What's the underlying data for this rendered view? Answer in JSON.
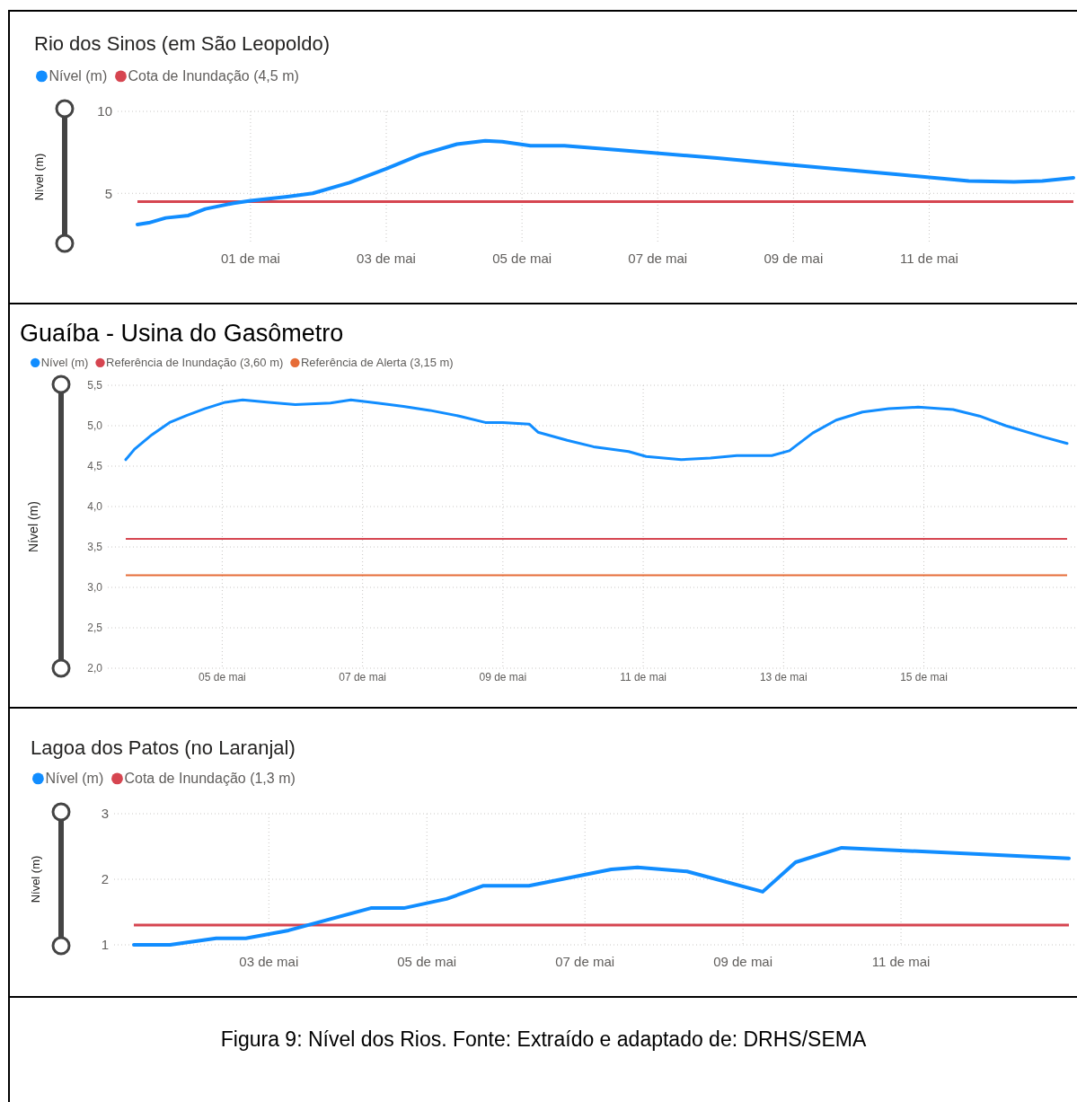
{
  "chart_data": [
    {
      "type": "line",
      "title": "Rio dos Sinos (em São Leopoldo)",
      "ylabel": "Nível (m)",
      "legend": "top left",
      "grid": true,
      "x": [
        "--04-29T08:00",
        "--04-29T12:00",
        "--04-29T18:00",
        "--04-30T02:00",
        "--04-30T08:00",
        "--04-30T18:00",
        "--05-01T00:00",
        "--05-01T13:00",
        "--05-01T22:00",
        "--05-02T11:00",
        "--05-03T00:00",
        "--05-03T12:00",
        "--05-04T01:00",
        "--05-04T11:00",
        "--05-04T17:00",
        "--05-05T03:00",
        "--05-05T15:00",
        "--05-06T13:00",
        "--05-07T21:00",
        "--05-09T05:00",
        "--05-10T13:00",
        "--05-11T14:00",
        "--05-12T06:00",
        "--05-12T16:00",
        "--05-13T03:00"
      ],
      "series": [
        {
          "name": "Nível (m)",
          "color": "#118dff",
          "type": "line",
          "values": [
            3.1,
            3.2,
            3.5,
            3.65,
            4.05,
            4.4,
            4.55,
            4.8,
            5.0,
            5.65,
            6.5,
            7.35,
            8.0,
            8.2,
            8.15,
            7.9,
            7.9,
            7.6,
            7.15,
            6.65,
            6.15,
            5.75,
            5.7,
            5.75,
            5.95
          ]
        }
      ],
      "xlim": [
        "--04-29T08:00",
        "--05-13T03:00"
      ],
      "ylim": [
        2,
        10
      ],
      "xticks": [
        {
          "value": "--05-01",
          "label": "01 de mai"
        },
        {
          "value": "--05-03",
          "label": "03 de mai"
        },
        {
          "value": "--05-05",
          "label": "05 de mai"
        },
        {
          "value": "--05-07",
          "label": "07 de mai"
        },
        {
          "value": "--05-09",
          "label": "09 de mai"
        },
        {
          "value": "--05-11",
          "label": "11 de mai"
        }
      ],
      "yticks": [
        5,
        10
      ],
      "ref_lines": [
        {
          "axis": "y",
          "value": 4.5,
          "label": "Cota de Inundação (4,5 m)",
          "color": "#d64550"
        }
      ]
    },
    {
      "type": "line",
      "title": "Guaíba - Usina do Gasômetro",
      "ylabel": "Nível (m)",
      "legend": "top left",
      "grid": true,
      "x": [
        "--05-03T15:00",
        "--05-03T18:00",
        "--05-04T00:00",
        "--05-04T06:00",
        "--05-04T12:00",
        "--05-04T18:00",
        "--05-05T01:00",
        "--05-05T07:00",
        "--05-05T16:00",
        "--05-06T01:00",
        "--05-06T13:00",
        "--05-06T20:00",
        "--05-07T05:00",
        "--05-07T14:00",
        "--05-07T23:00",
        "--05-08T09:00",
        "--05-08T18:00",
        "--05-09T00:00",
        "--05-09T09:00",
        "--05-09T12:00",
        "--05-09T22:00",
        "--05-10T07:00",
        "--05-10T19:00",
        "--05-11T01:00",
        "--05-11T13:00",
        "--05-11T23:00",
        "--05-12T08:00",
        "--05-12T20:00",
        "--05-13T02:00",
        "--05-13T10:00",
        "--05-13T18:00",
        "--05-14T03:00",
        "--05-14T12:00",
        "--05-14T22:00",
        "--05-15T10:00",
        "--05-15T19:00",
        "--05-16T04:00",
        "--05-16T17:00",
        "--05-17T01:00"
      ],
      "series": [
        {
          "name": "Nível (m)",
          "color": "#118dff",
          "type": "line",
          "values": [
            4.58,
            4.71,
            4.89,
            5.04,
            5.13,
            5.21,
            5.29,
            5.32,
            5.29,
            5.26,
            5.28,
            5.32,
            5.28,
            5.24,
            5.19,
            5.12,
            5.04,
            5.04,
            5.02,
            4.92,
            4.82,
            4.74,
            4.68,
            4.62,
            4.58,
            4.6,
            4.63,
            4.63,
            4.69,
            4.91,
            5.07,
            5.17,
            5.21,
            5.23,
            5.2,
            5.12,
            5.0,
            4.86,
            4.78
          ]
        }
      ],
      "xlim": [
        "--05-03T15:00",
        "--05-17T01:00"
      ],
      "ylim": [
        2,
        5.5
      ],
      "xticks": [
        {
          "value": "--05-05",
          "label": "05 de mai"
        },
        {
          "value": "--05-07",
          "label": "07 de mai"
        },
        {
          "value": "--05-09",
          "label": "09 de mai"
        },
        {
          "value": "--05-11",
          "label": "11 de mai"
        },
        {
          "value": "--05-13",
          "label": "13 de mai"
        },
        {
          "value": "--05-15",
          "label": "15 de mai"
        }
      ],
      "yticks": [
        {
          "value": 2,
          "label": "2,0"
        },
        {
          "value": 2.5,
          "label": "2,5"
        },
        {
          "value": 3,
          "label": "3,0"
        },
        {
          "value": 3.5,
          "label": "3,5"
        },
        {
          "value": 4,
          "label": "4,0"
        },
        {
          "value": 4.5,
          "label": "4,5"
        },
        {
          "value": 5,
          "label": "5,0"
        },
        {
          "value": 5.5,
          "label": "5,5"
        }
      ],
      "ref_lines": [
        {
          "axis": "y",
          "value": 3.6,
          "label": "Referência de Inundação (3,60 m)",
          "color": "#d64550"
        },
        {
          "axis": "y",
          "value": 3.15,
          "label": "Referência de Alerta (3,15 m)",
          "color": "#e66c37"
        }
      ]
    },
    {
      "type": "line",
      "title": "Lagoa dos Patos (no Laranjal)",
      "ylabel": "Nível (m)",
      "legend": "top left",
      "grid": true,
      "x": [
        "--05-01T07:00",
        "--05-01T18:00",
        "--05-02T08:00",
        "--05-02T17:00",
        "--05-03T06:00",
        "--05-04T07:00",
        "--05-04T17:00",
        "--05-05T06:00",
        "--05-05T17:00",
        "--05-06T07:00",
        "--05-06T18:00",
        "--05-07T08:00",
        "--05-07T16:00",
        "--05-08T07:00",
        "--05-09T06:00",
        "--05-09T16:00",
        "--05-10T06:00",
        "--05-13T03:00"
      ],
      "series": [
        {
          "name": "Nível (m)",
          "color": "#118dff",
          "type": "line",
          "values": [
            1.0,
            1.0,
            1.1,
            1.1,
            1.22,
            1.56,
            1.56,
            1.7,
            1.9,
            1.9,
            2.01,
            2.15,
            2.18,
            2.12,
            1.81,
            2.26,
            2.48,
            2.32
          ]
        }
      ],
      "xlim": [
        "--05-01T07:00",
        "--05-13T03:00"
      ],
      "ylim": [
        1,
        3
      ],
      "xticks": [
        {
          "value": "--05-03",
          "label": "03 de mai"
        },
        {
          "value": "--05-05",
          "label": "05 de mai"
        },
        {
          "value": "--05-07",
          "label": "07 de mai"
        },
        {
          "value": "--05-09",
          "label": "09 de mai"
        },
        {
          "value": "--05-11",
          "label": "11 de mai"
        }
      ],
      "yticks": [
        1,
        2,
        3
      ],
      "ref_lines": [
        {
          "axis": "y",
          "value": 1.3,
          "label": "Cota de Inundação (1,3 m)",
          "color": "#d64550"
        }
      ],
      "annotations": [
        "Figura 9: Nível dos Rios. Fonte: Extraído e adaptado de: DRHS/SEMA"
      ]
    }
  ]
}
